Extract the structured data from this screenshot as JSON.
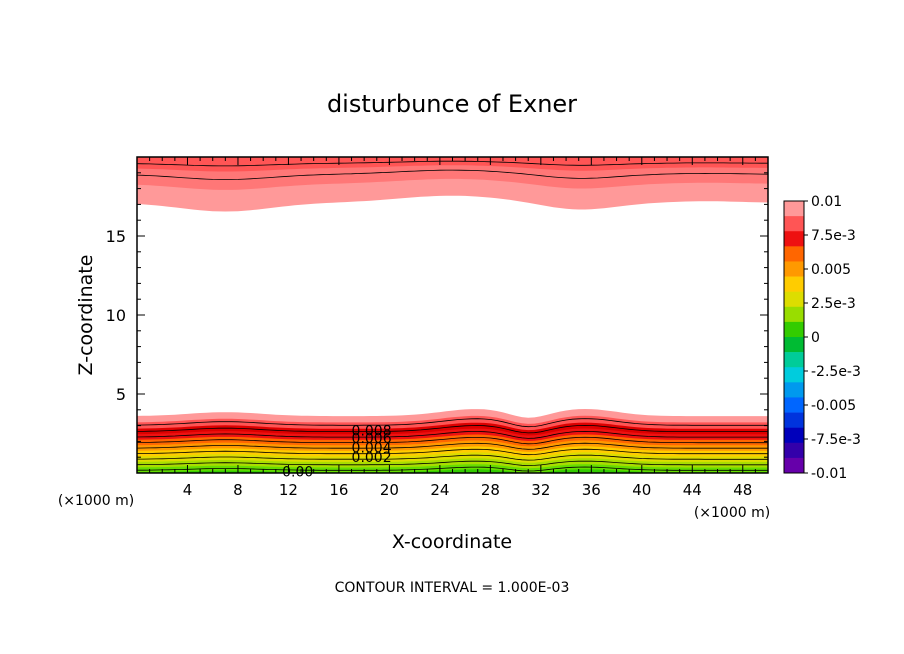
{
  "chart_data": {
    "type": "contour",
    "title": "disturbunce of Exner",
    "xlabel": "X-coordinate",
    "ylabel": "Z-coordinate",
    "x_unit": "(×1000 m)",
    "y_unit": "(×1000 m)",
    "xlim": [
      0,
      50
    ],
    "ylim": [
      0,
      20
    ],
    "x_ticks": [
      4,
      8,
      12,
      16,
      20,
      24,
      28,
      32,
      36,
      40,
      44,
      48
    ],
    "y_ticks": [
      5,
      10,
      15
    ],
    "footer": "CONTOUR INTERVAL = 1.000E-03",
    "contour_interval": 0.001,
    "contour_labels": [
      {
        "text": "0.008",
        "x": 17.0,
        "z": 2.7
      },
      {
        "text": "0.006",
        "x": 17.0,
        "z": 2.2
      },
      {
        "text": "0.004",
        "x": 17.0,
        "z": 1.6
      },
      {
        "text": "0.002",
        "x": 17.0,
        "z": 1.0
      },
      {
        "text": "0.00",
        "x": 11.5,
        "z": 0.1
      }
    ],
    "colorbar": {
      "labels": [
        "0.01",
        "7.5e-3",
        "0.005",
        "2.5e-3",
        "0",
        "-2.5e-3",
        "-0.005",
        "-7.5e-3",
        "-0.01"
      ],
      "colors": [
        "#ff9999",
        "#ff5555",
        "#ee1111",
        "#ff6600",
        "#ff9900",
        "#ffcc00",
        "#dddd00",
        "#99dd00",
        "#33cc00",
        "#00bb33",
        "#00cc99",
        "#00ccdd",
        "#0099ee",
        "#0066ff",
        "#0033dd",
        "#0000bb",
        "#3300aa",
        "#6600aa"
      ],
      "vmin": -0.01,
      "vmax": 0.01
    },
    "field_description_bands": {
      "lower_levels": [
        {
          "value": 0.0,
          "color": "#33cc00"
        },
        {
          "value": 0.0005,
          "color": "#66dd00"
        },
        {
          "value": 0.0015,
          "color": "#aadd00"
        },
        {
          "value": 0.0025,
          "color": "#dddd00"
        },
        {
          "value": 0.0035,
          "color": "#ffcc00"
        },
        {
          "value": 0.0045,
          "color": "#ff9900"
        },
        {
          "value": 0.0055,
          "color": "#ff6600"
        },
        {
          "value": 0.0065,
          "color": "#ee1111"
        },
        {
          "value": 0.0075,
          "color": "#dd0000"
        },
        {
          "value": 0.0085,
          "color": "#ff5555"
        },
        {
          "value": 0.0095,
          "color": "#ff9999"
        }
      ],
      "upper_levels": [
        {
          "value": 0.0095,
          "color": "#ff9999"
        },
        {
          "value": 0.0085,
          "color": "#ff7777"
        },
        {
          "value": 0.0075,
          "color": "#ff5555"
        }
      ]
    }
  }
}
